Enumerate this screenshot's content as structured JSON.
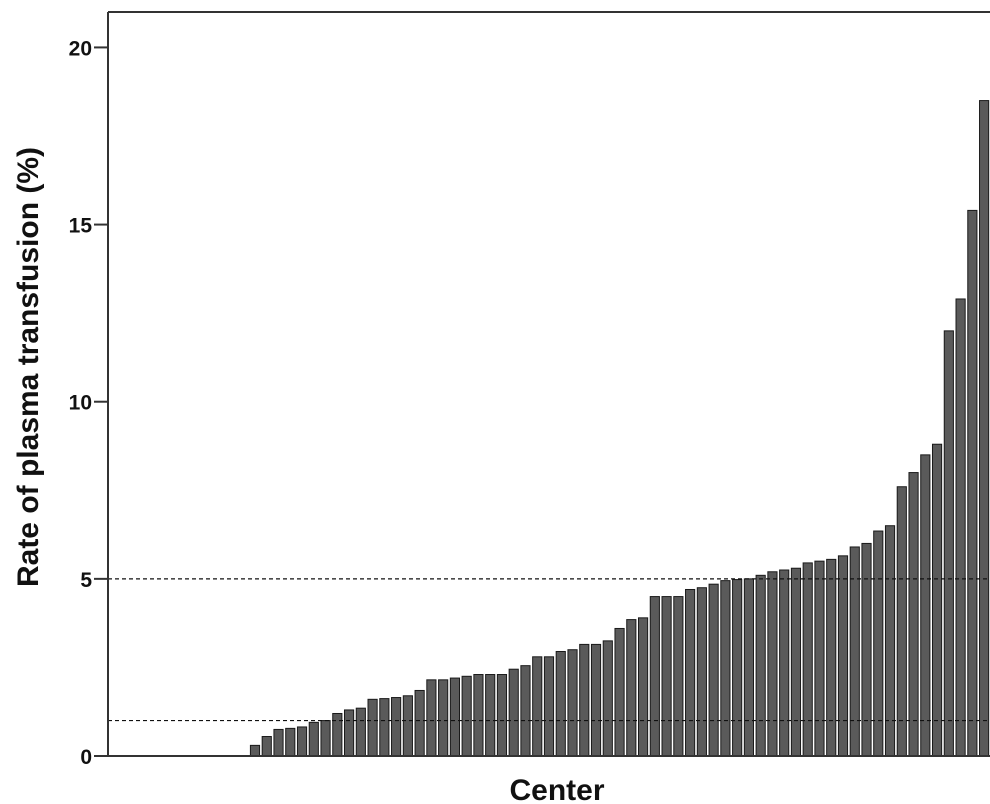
{
  "chart_data": {
    "type": "bar",
    "title": "",
    "xlabel": "Center",
    "ylabel": "Rate of plasma transfusion (%)",
    "ylim": [
      0,
      21
    ],
    "yticks": [
      0,
      5,
      10,
      15,
      20
    ],
    "ytick_labels": [
      "0",
      "5",
      "10",
      "15",
      "20"
    ],
    "reference_lines": [
      1,
      5
    ],
    "grid": false,
    "legend": "none",
    "colors": {
      "bar_fill": "#5a5a5a",
      "bar_edge": "#1a1a1a",
      "axis": "#333333",
      "reference_line": "#111111"
    },
    "values": [
      0,
      0,
      0,
      0,
      0,
      0,
      0,
      0,
      0,
      0,
      0,
      0,
      0.3,
      0.55,
      0.75,
      0.78,
      0.82,
      0.95,
      1.0,
      1.2,
      1.3,
      1.35,
      1.6,
      1.62,
      1.65,
      1.7,
      1.85,
      2.15,
      2.15,
      2.2,
      2.25,
      2.3,
      2.3,
      2.3,
      2.45,
      2.55,
      2.8,
      2.8,
      2.95,
      3.0,
      3.15,
      3.15,
      3.25,
      3.6,
      3.85,
      3.9,
      4.5,
      4.5,
      4.5,
      4.7,
      4.75,
      4.85,
      4.95,
      4.98,
      5.0,
      5.1,
      5.2,
      5.25,
      5.3,
      5.45,
      5.5,
      5.55,
      5.65,
      5.9,
      6.0,
      6.35,
      6.5,
      7.6,
      8.0,
      8.5,
      8.8,
      12.0,
      12.9,
      15.4,
      18.5
    ]
  }
}
